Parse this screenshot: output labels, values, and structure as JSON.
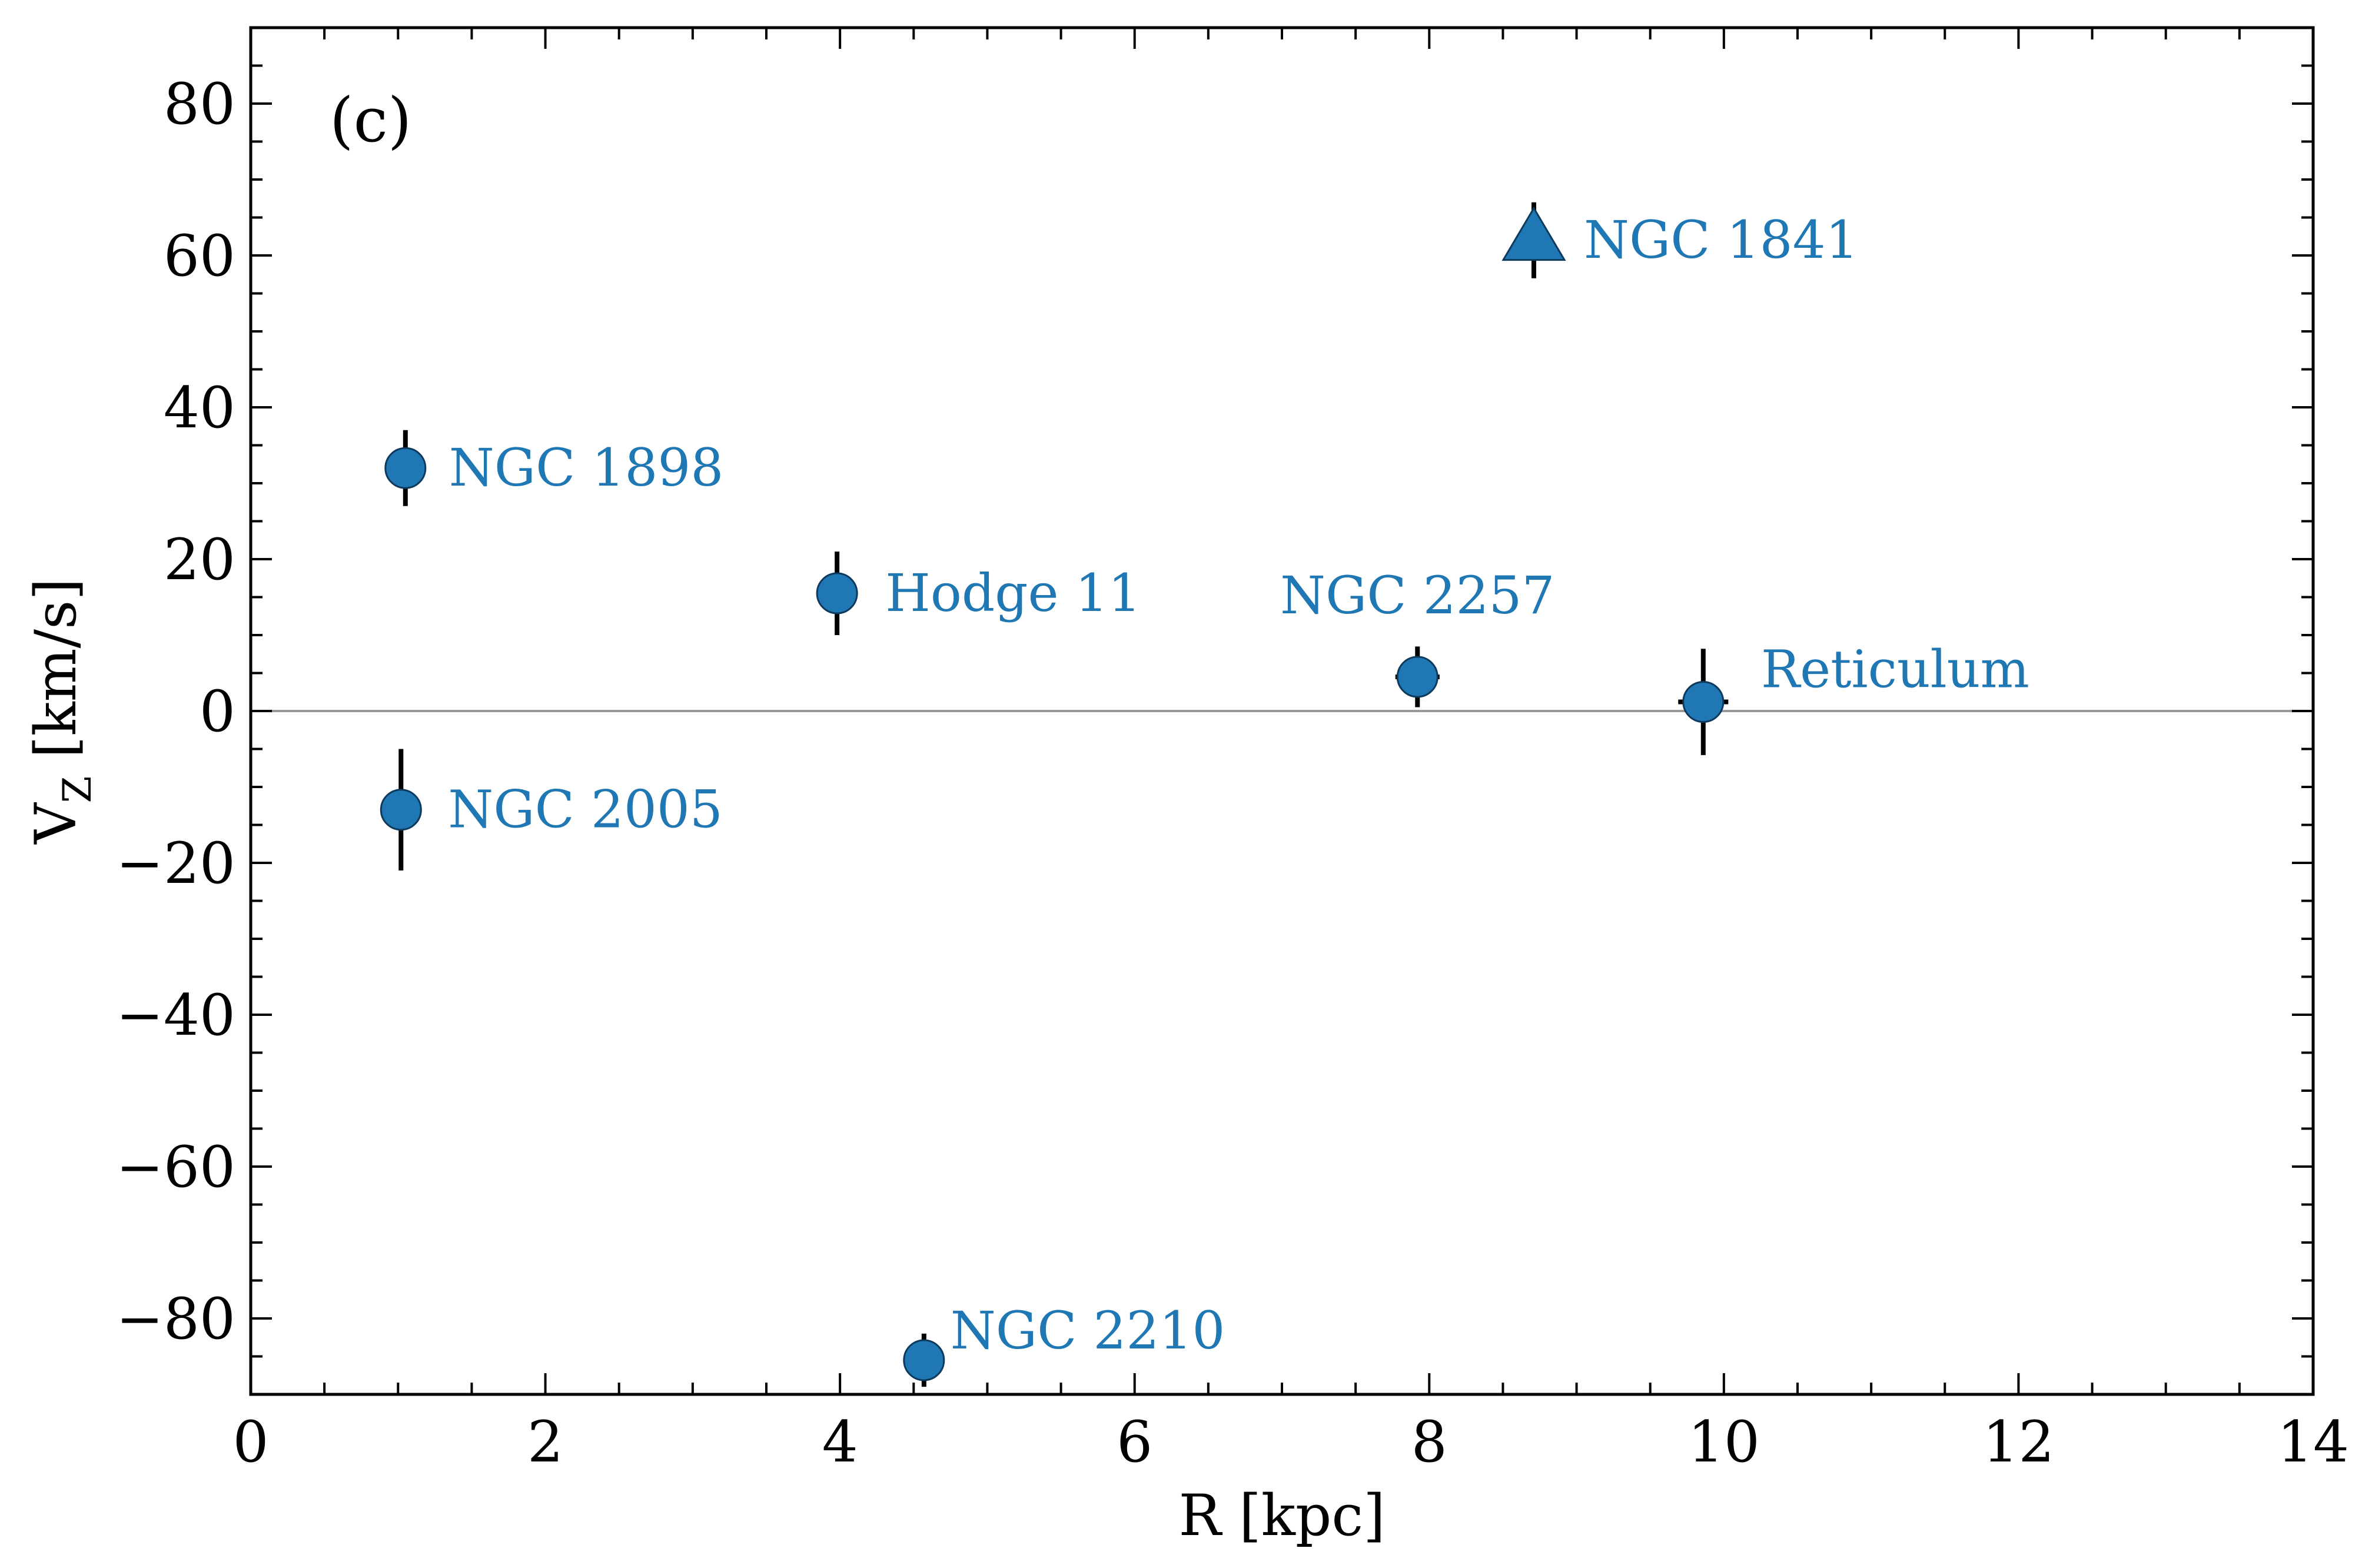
{
  "chart_data": {
    "type": "scatter",
    "panel_label": "(c)",
    "xlabel": "R [kpc]",
    "ylabel_main": "V",
    "ylabel_sub": "Z",
    "ylabel_tail": " [km/s]",
    "xlim": [
      0,
      14
    ],
    "ylim": [
      -90,
      90
    ],
    "x_ticks": [
      0,
      2,
      4,
      6,
      8,
      10,
      12,
      14
    ],
    "x_tick_labels": [
      "0",
      "2",
      "4",
      "6",
      "8",
      "10",
      "12",
      "14"
    ],
    "y_ticks": [
      -80,
      -60,
      -40,
      -20,
      0,
      20,
      40,
      60,
      80
    ],
    "y_tick_labels": [
      "−80",
      "−60",
      "−40",
      "−20",
      "0",
      "20",
      "40",
      "60",
      "80"
    ],
    "zero_line": true,
    "grid": false,
    "colors": {
      "marker": "#1f77b4",
      "label": "#1f77b4",
      "errorbar": "#000000",
      "zero_line": "#999999"
    },
    "points": [
      {
        "label": "NGC 1898",
        "x": 1.05,
        "y": 32.0,
        "xerr": 0.0,
        "yerr": 5.0,
        "marker": "circle"
      },
      {
        "label": "NGC 2005",
        "x": 1.02,
        "y": -13.0,
        "xerr": 0.0,
        "yerr": 8.0,
        "marker": "circle"
      },
      {
        "label": "Hodge 11",
        "x": 3.98,
        "y": 15.5,
        "xerr": 0.0,
        "yerr": 5.5,
        "marker": "circle"
      },
      {
        "label": "NGC 2210",
        "x": 4.57,
        "y": -85.5,
        "xerr": 0.0,
        "yerr": 3.5,
        "marker": "circle"
      },
      {
        "label": "NGC 2257",
        "x": 7.92,
        "y": 4.5,
        "xerr": 0.15,
        "yerr": 4.0,
        "marker": "circle"
      },
      {
        "label": "NGC 1841",
        "x": 8.71,
        "y": 62.0,
        "xerr": 0.0,
        "yerr": 5.0,
        "marker": "triangle"
      },
      {
        "label": "Reticulum",
        "x": 9.86,
        "y": 1.2,
        "xerr": 0.17,
        "yerr": 7.0,
        "marker": "circle"
      }
    ]
  }
}
